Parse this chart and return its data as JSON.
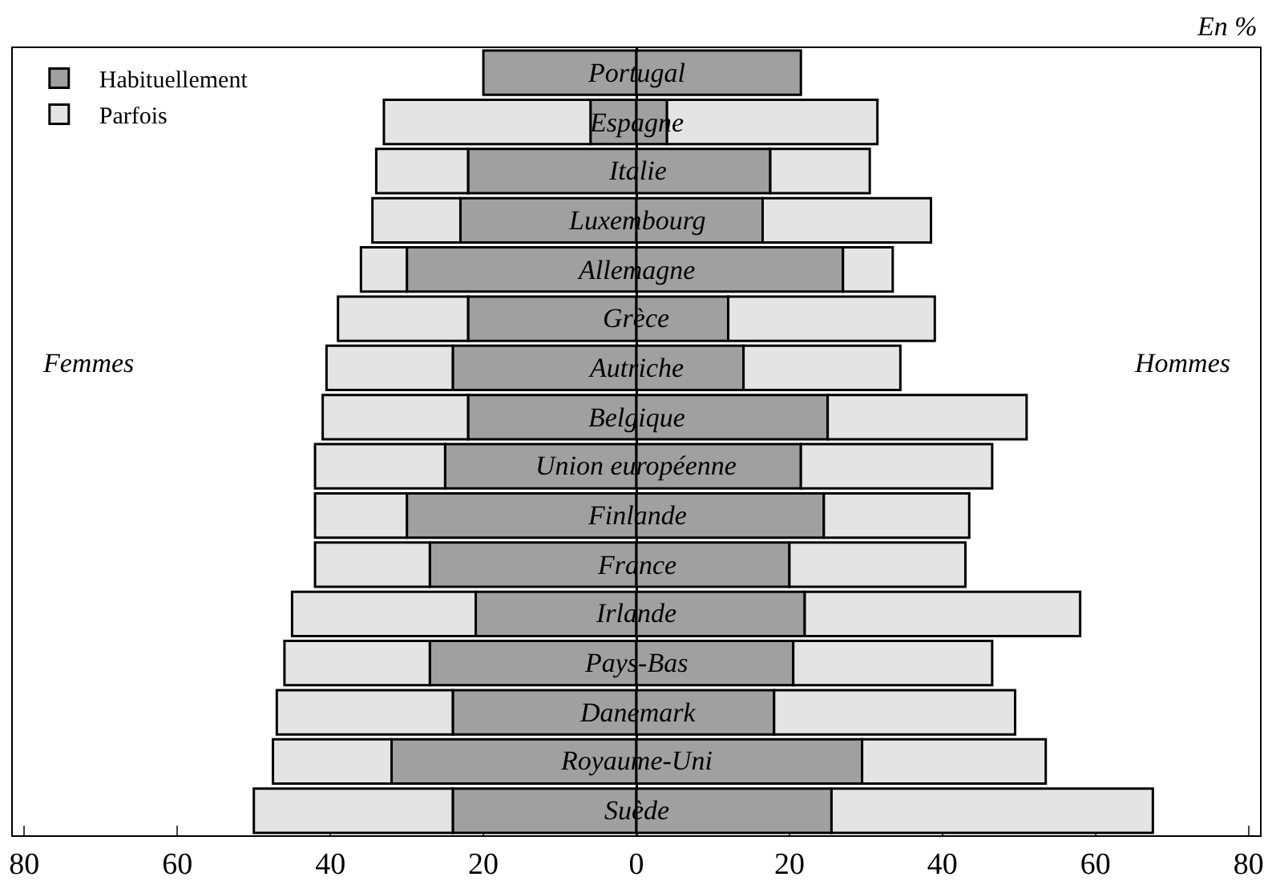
{
  "chart_data": {
    "type": "bar",
    "orientation": "horizontal",
    "stacked": true,
    "categories": [
      "Portugal",
      "Espagne",
      "Italie",
      "Luxembourg",
      "Allemagne",
      "Grèce",
      "Autriche",
      "Belgique",
      "Union européenne",
      "Finlande",
      "France",
      "Irlande",
      "Pays-Bas",
      "Danemark",
      "Royaume-Uni",
      "Suède"
    ],
    "series": [
      {
        "name": "Habituellement",
        "color": "#a0a0a0",
        "values": [
          -20,
          -6,
          -22,
          -23,
          -30,
          -22,
          -24,
          -22,
          -25,
          -30,
          -27,
          -21,
          -27,
          -24,
          -32,
          -24
        ]
      },
      {
        "name": "Parfois",
        "color": "#e4e4e4",
        "values": [
          null,
          -27,
          -12,
          -11.5,
          -6,
          -17,
          -16.5,
          -19,
          -17,
          -12,
          -15,
          -24,
          -19,
          -23,
          -15.5,
          -26
        ]
      },
      {
        "color": "#a0a0a0",
        "values": [
          21.5,
          4,
          17.5,
          16.5,
          27,
          12,
          14,
          25,
          21.5,
          24.5,
          20,
          22,
          20.5,
          18,
          29.5,
          25.5
        ]
      },
      {
        "color": "#e4e4e4",
        "values": [
          null,
          27.5,
          13,
          22,
          6.5,
          27,
          20.5,
          26,
          25,
          19,
          23,
          36,
          26,
          31.5,
          24,
          42
        ]
      }
    ],
    "xlim": [
      -81.5,
      81.5
    ],
    "xticks": [
      {
        "value": -80,
        "label": "80"
      },
      {
        "value": -60,
        "label": "60"
      },
      {
        "value": -40,
        "label": "40"
      },
      {
        "value": -20,
        "label": "20"
      },
      0,
      20,
      40,
      60,
      80
    ],
    "annotations": [
      {
        "text": "Femmes"
      },
      {
        "text": "Hommes"
      },
      {
        "text": "En %"
      }
    ],
    "legend": "top left",
    "grid": false
  }
}
